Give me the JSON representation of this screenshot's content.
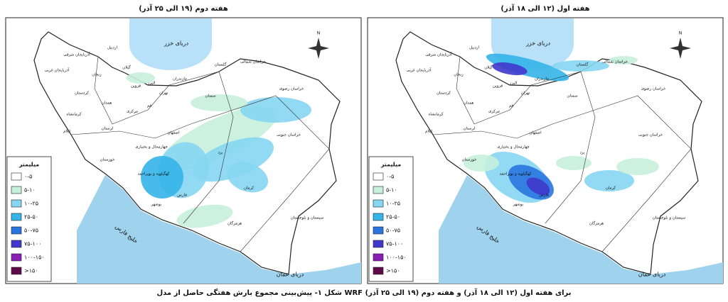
{
  "panels": [
    {
      "title": "هفته دوم (۱۹ الی ۲۵ آذر)"
    },
    {
      "title": "هفته اول (۱۲ الی ۱۸ آذر)"
    }
  ],
  "legend": {
    "title": "میلیمتر",
    "items": [
      {
        "label": "۰-۵",
        "color": "#ffffff"
      },
      {
        "label": "۵-۱۰",
        "color": "#c6f0dc"
      },
      {
        "label": "۱۰-۲۵",
        "color": "#86d6f2"
      },
      {
        "label": "۲۵-۵۰",
        "color": "#34b4e8"
      },
      {
        "label": "۵۰-۷۵",
        "color": "#2a74e0"
      },
      {
        "label": "۷۵-۱۰۰",
        "color": "#4038cc"
      },
      {
        "label": "۱۰۰-۱۵۰",
        "color": "#8a1eb4"
      },
      {
        "label": ">۱۵۰",
        "color": "#5e0a48"
      }
    ]
  },
  "seas": [
    "دریای خزر",
    "دریای عمان",
    "خلیج فارس"
  ],
  "labels": [
    "اردبیل",
    "آذربایجان شرقی",
    "آذربایجان غربی",
    "زنجان",
    "گیلان",
    "مازندران",
    "گلستان",
    "خراسان شمالی",
    "خراسان رضوی",
    "خراسان جنوبی",
    "سمنان",
    "تهران",
    "قزوین",
    "البرز",
    "قم",
    "مرکزی",
    "همدان",
    "کردستان",
    "کرمانشاه",
    "ایلام",
    "لرستان",
    "خوزستان",
    "اصفهان",
    "یزد",
    "کرمان",
    "فارس",
    "بوشهر",
    "هرمزگان",
    "سیستان و بلوچستان",
    "چهارمحال و بختیاری",
    "کهگیلویه و بویراحمد"
  ],
  "north": "N",
  "caption": "شکل ۱- پیش‌بینی مجموع بارش هفتگی حاصل از مدل WRF برای هفته اول (۱۲ الی ۱۸ آذر) و هفته دوم (۱۹ الی ۲۵ آذر)"
}
